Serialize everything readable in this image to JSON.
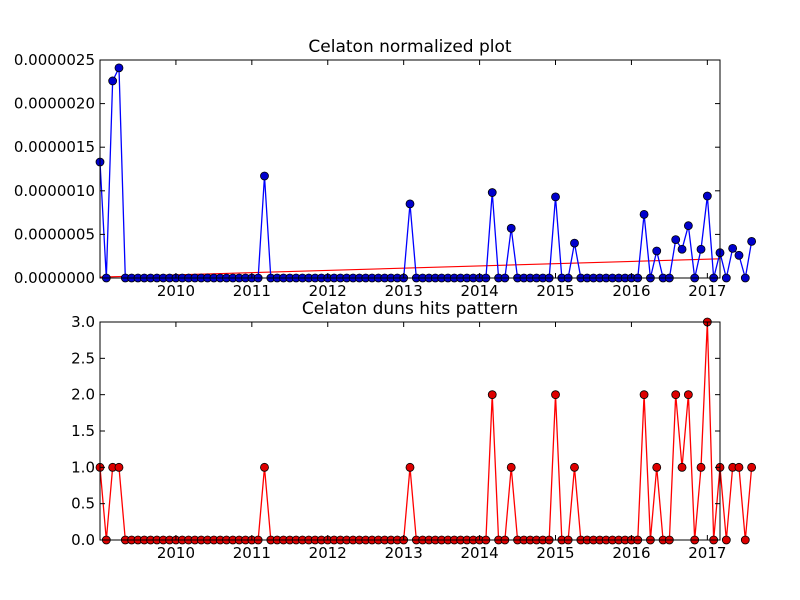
{
  "chart_data": [
    {
      "type": "line",
      "title": "Celaton normalized plot",
      "x_start": "2009-01",
      "x_step": "1 month",
      "xlim": [
        "2009-01",
        "2017-03"
      ],
      "ylim": [
        0,
        2.5e-06
      ],
      "yticks": [
        0,
        5e-07,
        1e-06,
        1.5e-06,
        2e-06,
        2.5e-06
      ],
      "ytick_labels": [
        "0.0000000",
        "0.0000005",
        "0.0000010",
        "0.0000015",
        "0.0000020",
        "0.0000025"
      ],
      "xticks": [
        "2010-01",
        "2011-01",
        "2012-01",
        "2013-01",
        "2014-01",
        "2015-01",
        "2016-01",
        "2017-01"
      ],
      "xtick_labels": [
        "2010",
        "2011",
        "2012",
        "2013",
        "2014",
        "2015",
        "2016",
        "2017"
      ],
      "series_color": "#0000ff",
      "marker_color": "#0000cc",
      "values": [
        1.33e-06,
        0,
        2.26e-06,
        2.41e-06,
        0,
        0,
        0,
        0,
        0,
        0,
        0,
        0,
        0,
        0,
        0,
        0,
        0,
        0,
        0,
        0,
        0,
        0,
        0,
        0,
        0,
        0,
        1.17e-06,
        0,
        0,
        0,
        0,
        0,
        0,
        0,
        0,
        0,
        0,
        0,
        0,
        0,
        0,
        0,
        0,
        0,
        0,
        0,
        0,
        0,
        0,
        8.5e-07,
        0,
        0,
        0,
        0,
        0,
        0,
        0,
        0,
        0,
        0,
        0,
        0,
        9.8e-07,
        0,
        0,
        5.7e-07,
        0,
        0,
        0,
        0,
        0,
        0,
        9.3e-07,
        0,
        0,
        4e-07,
        0,
        0,
        0,
        0,
        0,
        0,
        0,
        0,
        0,
        0,
        7.3e-07,
        0,
        3.1e-07,
        0,
        0,
        4.4e-07,
        3.3e-07,
        6e-07,
        0,
        3.3e-07,
        9.4e-07,
        0,
        2.9e-07,
        0,
        3.4e-07,
        2.6e-07,
        0,
        4.2e-07
      ],
      "trend": {
        "color": "#ff0000",
        "start": 1e-08,
        "end": 2.2e-07
      }
    },
    {
      "type": "line",
      "title": "Celaton duns hits pattern",
      "x_start": "2009-01",
      "x_step": "1 month",
      "xlim": [
        "2009-01",
        "2017-03"
      ],
      "ylim": [
        0,
        3
      ],
      "yticks": [
        0,
        0.5,
        1,
        1.5,
        2,
        2.5,
        3
      ],
      "ytick_labels": [
        "0.0",
        "0.5",
        "1.0",
        "1.5",
        "2.0",
        "2.5",
        "3.0"
      ],
      "xticks": [
        "2010-01",
        "2011-01",
        "2012-01",
        "2013-01",
        "2014-01",
        "2015-01",
        "2016-01",
        "2017-01"
      ],
      "xtick_labels": [
        "2010",
        "2011",
        "2012",
        "2013",
        "2014",
        "2015",
        "2016",
        "2017"
      ],
      "series_color": "#ff0000",
      "marker_color": "#dd0000",
      "values": [
        1,
        0,
        1,
        1,
        0,
        0,
        0,
        0,
        0,
        0,
        0,
        0,
        0,
        0,
        0,
        0,
        0,
        0,
        0,
        0,
        0,
        0,
        0,
        0,
        0,
        0,
        1,
        0,
        0,
        0,
        0,
        0,
        0,
        0,
        0,
        0,
        0,
        0,
        0,
        0,
        0,
        0,
        0,
        0,
        0,
        0,
        0,
        0,
        0,
        1,
        0,
        0,
        0,
        0,
        0,
        0,
        0,
        0,
        0,
        0,
        0,
        0,
        2,
        0,
        0,
        1,
        0,
        0,
        0,
        0,
        0,
        0,
        2,
        0,
        0,
        1,
        0,
        0,
        0,
        0,
        0,
        0,
        0,
        0,
        0,
        0,
        2,
        0,
        1,
        0,
        0,
        2,
        1,
        2,
        0,
        1,
        3,
        0,
        1,
        0,
        1,
        1,
        0,
        1
      ]
    }
  ]
}
